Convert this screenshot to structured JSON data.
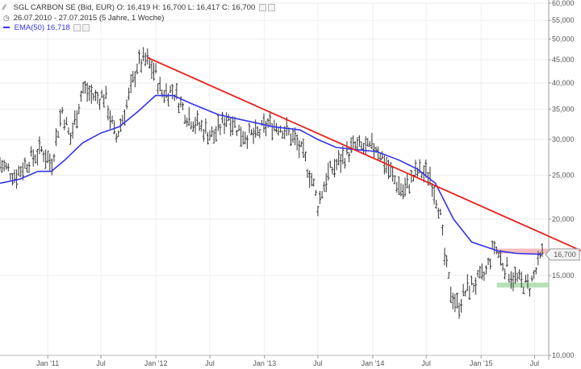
{
  "header": {
    "line1_symbol": "SGL CARBON SE (Bid, EUR)",
    "line1_ohlc": "O: 16,419  H: 16,700  L: 16,417  C: 16,700",
    "line2": "26.07.2010 - 27.07.2015 (5 Jahre, 1 Woche)",
    "line3_name": "EMA(50)",
    "line3_value": "16,718",
    "ema_color": "#3333ee"
  },
  "chart_data": {
    "type": "bar",
    "scale": "log",
    "ylim": [
      10000,
      60000
    ],
    "y_ticks": [
      {
        "v": 60000,
        "label": "60,000"
      },
      {
        "v": 55000,
        "label": "55,000"
      },
      {
        "v": 50000,
        "label": "50,000"
      },
      {
        "v": 45000,
        "label": "45,000"
      },
      {
        "v": 40000,
        "label": "40,000"
      },
      {
        "v": 35000,
        "label": "35,000"
      },
      {
        "v": 30000,
        "label": "30,000"
      },
      {
        "v": 25000,
        "label": "25,000"
      },
      {
        "v": 20000,
        "label": "20,000"
      },
      {
        "v": 15000,
        "label": "15,000"
      },
      {
        "v": 10000,
        "label": "10,000"
      }
    ],
    "xlim": [
      "2010-07-26",
      "2015-07-27"
    ],
    "x_ticks": [
      {
        "d": "2011-01-03",
        "label": "Jan '11"
      },
      {
        "d": "2011-07-01",
        "label": "Jul"
      },
      {
        "d": "2012-01-02",
        "label": "Jan '12"
      },
      {
        "d": "2012-07-02",
        "label": "Jul"
      },
      {
        "d": "2013-01-02",
        "label": "Jan '13"
      },
      {
        "d": "2013-07-01",
        "label": "Jul"
      },
      {
        "d": "2014-01-02",
        "label": "Jan '14"
      },
      {
        "d": "2014-07-01",
        "label": "Jul"
      },
      {
        "d": "2015-01-02",
        "label": "Jan '15"
      },
      {
        "d": "2015-07-01",
        "label": "Jul"
      }
    ],
    "price_path": [
      [
        "2010-07-26",
        26500
      ],
      [
        "2010-09-15",
        25000
      ],
      [
        "2010-11-01",
        27000
      ],
      [
        "2010-12-15",
        28500
      ],
      [
        "2011-01-15",
        26500
      ],
      [
        "2011-02-20",
        35000
      ],
      [
        "2011-03-20",
        30000
      ],
      [
        "2011-05-01",
        39000
      ],
      [
        "2011-06-15",
        37000
      ],
      [
        "2011-07-15",
        37500
      ],
      [
        "2011-08-20",
        30000
      ],
      [
        "2011-09-30",
        36500
      ],
      [
        "2011-11-01",
        44000
      ],
      [
        "2011-12-01",
        45000
      ],
      [
        "2012-01-01",
        42000
      ],
      [
        "2012-01-20",
        38000
      ],
      [
        "2012-03-01",
        38500
      ],
      [
        "2012-04-15",
        34000
      ],
      [
        "2012-06-01",
        32000
      ],
      [
        "2012-07-15",
        30500
      ],
      [
        "2012-09-01",
        34000
      ],
      [
        "2012-10-15",
        31000
      ],
      [
        "2012-12-01",
        30500
      ],
      [
        "2013-01-15",
        32500
      ],
      [
        "2013-03-01",
        32000
      ],
      [
        "2013-04-15",
        30000
      ],
      [
        "2013-05-15",
        27500
      ],
      [
        "2013-06-15",
        24000
      ],
      [
        "2013-07-01",
        21500
      ],
      [
        "2013-08-01",
        25000
      ],
      [
        "2013-09-15",
        27000
      ],
      [
        "2013-11-01",
        29000
      ],
      [
        "2013-12-15",
        28500
      ],
      [
        "2014-01-15",
        29000
      ],
      [
        "2014-02-15",
        26500
      ],
      [
        "2014-03-15",
        24500
      ],
      [
        "2014-04-15",
        23000
      ],
      [
        "2014-06-01",
        25500
      ],
      [
        "2014-07-15",
        25000
      ],
      [
        "2014-08-15",
        21000
      ],
      [
        "2014-09-01",
        16500
      ],
      [
        "2014-09-20",
        14000
      ],
      [
        "2014-10-15",
        12800
      ],
      [
        "2014-11-15",
        14000
      ],
      [
        "2014-12-15",
        14500
      ],
      [
        "2015-01-15",
        15000
      ],
      [
        "2015-02-15",
        17500
      ],
      [
        "2015-03-15",
        16000
      ],
      [
        "2015-04-15",
        15000
      ],
      [
        "2015-05-15",
        14500
      ],
      [
        "2015-06-15",
        14200
      ],
      [
        "2015-07-27",
        16700
      ]
    ],
    "ema": [
      [
        "2010-07-26",
        24000
      ],
      [
        "2010-10-01",
        24500
      ],
      [
        "2010-12-01",
        25500
      ],
      [
        "2011-01-15",
        25500
      ],
      [
        "2011-03-01",
        27000
      ],
      [
        "2011-05-01",
        29500
      ],
      [
        "2011-07-01",
        31000
      ],
      [
        "2011-09-01",
        32000
      ],
      [
        "2011-11-01",
        34500
      ],
      [
        "2012-01-01",
        37500
      ],
      [
        "2012-03-01",
        37500
      ],
      [
        "2012-05-01",
        36000
      ],
      [
        "2012-08-01",
        34000
      ],
      [
        "2012-11-01",
        33000
      ],
      [
        "2013-02-01",
        32000
      ],
      [
        "2013-05-01",
        31500
      ],
      [
        "2013-07-01",
        30000
      ],
      [
        "2013-09-01",
        28800
      ],
      [
        "2013-11-01",
        28500
      ],
      [
        "2014-01-15",
        28200
      ],
      [
        "2014-04-01",
        27000
      ],
      [
        "2014-06-01",
        25800
      ],
      [
        "2014-08-01",
        24000
      ],
      [
        "2014-10-01",
        20000
      ],
      [
        "2014-12-01",
        17800
      ],
      [
        "2015-03-01",
        17000
      ],
      [
        "2015-05-01",
        16800
      ],
      [
        "2015-07-27",
        16718
      ]
    ],
    "trendline": {
      "from": [
        "2011-12-05",
        45500
      ],
      "to": [
        "2015-07-27",
        18600
      ],
      "color": "#e8201a"
    },
    "resistance_zone": {
      "from": "2015-01-01",
      "to": "2015-07-27",
      "value": 17000,
      "color": "#f2b3b3"
    },
    "support_zone": {
      "from": "2015-01-01",
      "to": "2015-07-27",
      "value": 14300,
      "color": "#a8dca8"
    },
    "last_price_label": "16,700",
    "bar_color": "#333333",
    "grid": true
  }
}
